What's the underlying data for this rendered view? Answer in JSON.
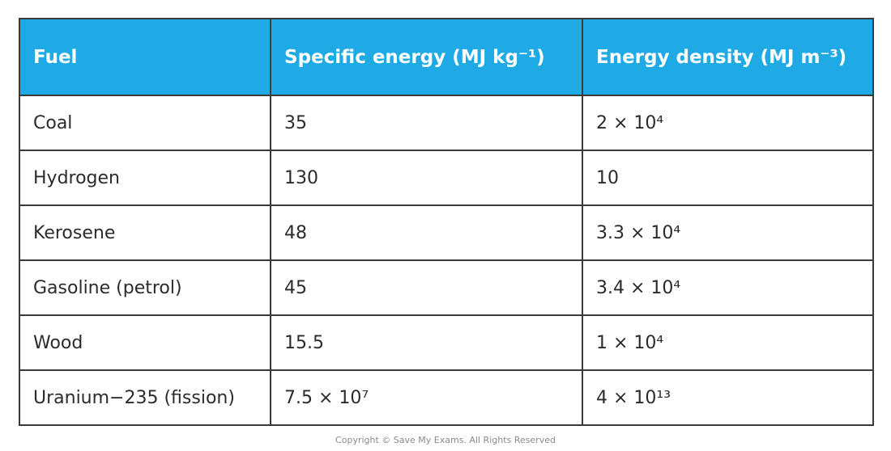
{
  "table": {
    "header": [
      "Fuel",
      "Specific energy (MJ kg⁻¹)",
      "Energy density (MJ m⁻³)"
    ],
    "rows": [
      [
        "Coal",
        "35",
        "2 × 10⁴"
      ],
      [
        "Hydrogen",
        "130",
        "10"
      ],
      [
        "Kerosene",
        "48",
        "3.3 × 10⁴"
      ],
      [
        "Gasoline (petrol)",
        "45",
        "3.4 × 10⁴"
      ],
      [
        "Wood",
        "15.5",
        "1 × 10⁴"
      ],
      [
        "Uranium−235 (fission)",
        "7.5 × 10⁷",
        "4 × 10¹³"
      ]
    ]
  },
  "footer": {
    "copyright": "Copyright © Save My Exams. All Rights Reserved"
  }
}
